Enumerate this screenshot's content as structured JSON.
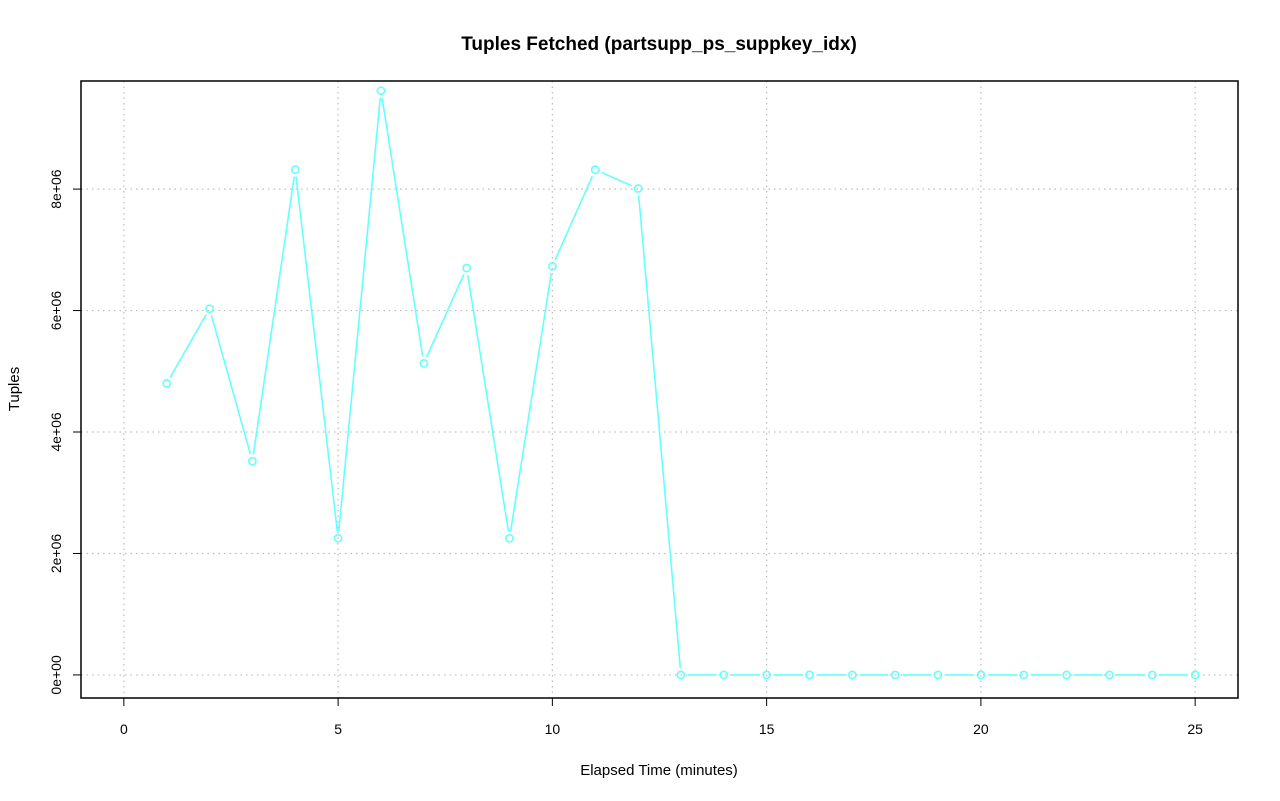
{
  "chart_data": {
    "type": "line",
    "title": "Tuples Fetched (partsupp_ps_suppkey_idx)",
    "xlabel": "Elapsed Time (minutes)",
    "ylabel": "Tuples",
    "xlim": [
      -1,
      26
    ],
    "ylim": [
      -380000,
      9780000
    ],
    "x_ticks": [
      0,
      5,
      10,
      15,
      20,
      25
    ],
    "x_tick_labels": [
      "0",
      "5",
      "10",
      "15",
      "20",
      "25"
    ],
    "y_ticks": [
      0,
      2000000,
      4000000,
      6000000,
      8000000
    ],
    "y_tick_labels": [
      "0e+00",
      "2e+06",
      "4e+06",
      "6e+06",
      "8e+06"
    ],
    "grid": true,
    "series": [
      {
        "color": "#66ffff",
        "marker": "circle",
        "x": [
          1,
          2,
          3,
          4,
          5,
          6,
          7,
          8,
          9,
          10,
          11,
          12,
          13,
          14,
          15,
          16,
          17,
          18,
          19,
          20,
          21,
          22,
          23,
          24,
          25
        ],
        "values": [
          4800000,
          6030000,
          3520000,
          8320000,
          2250000,
          9620000,
          5130000,
          6700000,
          2250000,
          6730000,
          8320000,
          8010000,
          0,
          0,
          0,
          0,
          0,
          0,
          0,
          0,
          0,
          0,
          0,
          0,
          0
        ]
      }
    ]
  }
}
